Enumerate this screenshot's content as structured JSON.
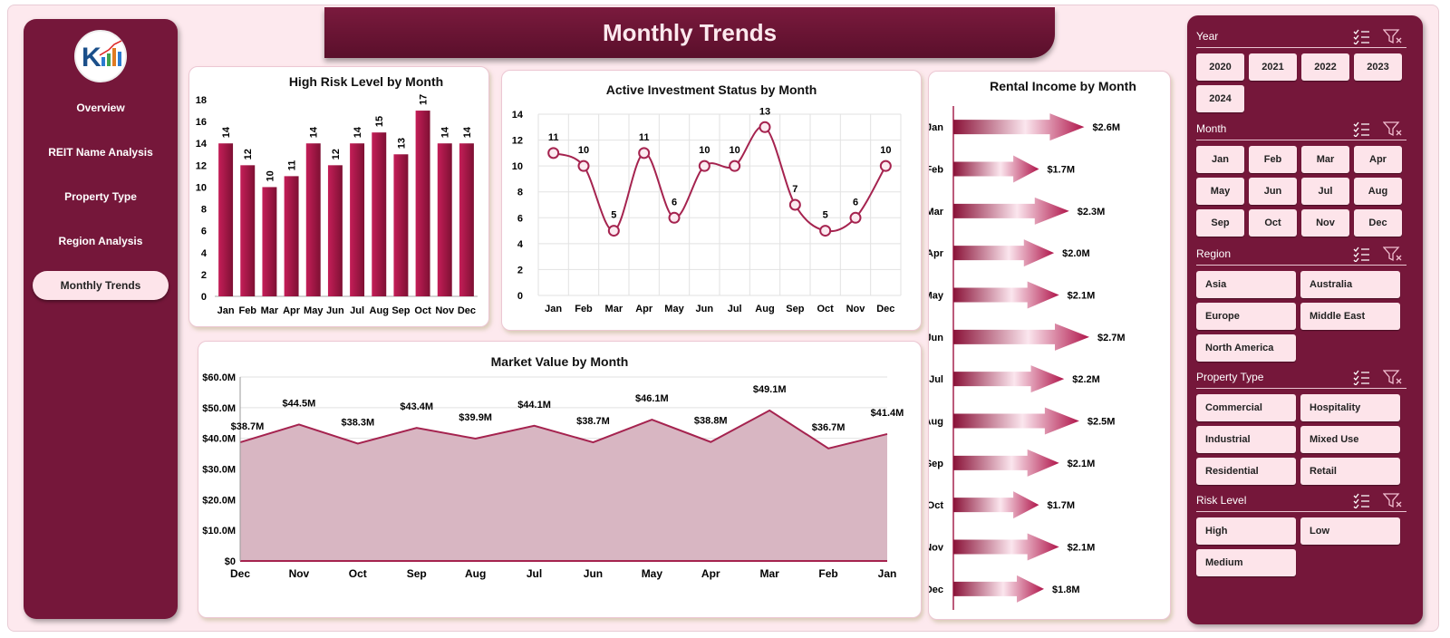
{
  "header": {
    "title": "Monthly Trends"
  },
  "nav": {
    "items": [
      "Overview",
      "REIT Name Analysis",
      "Property Type",
      "Region Analysis",
      "Monthly Trends"
    ],
    "active_index": 4
  },
  "colors": {
    "accent": "#75173a",
    "bar": "#a9174a",
    "area_fill": "#d8b6c2",
    "tile": "#fde4ea",
    "page": "#fde9ee"
  },
  "icons": {
    "multi_select": "multi-select-icon",
    "clear_filter": "clear-filter-icon"
  },
  "slicers": [
    {
      "title": "Year",
      "items": [
        "2020",
        "2021",
        "2022",
        "2023",
        "2024"
      ]
    },
    {
      "title": "Month",
      "items": [
        "Jan",
        "Feb",
        "Mar",
        "Apr",
        "May",
        "Jun",
        "Jul",
        "Aug",
        "Sep",
        "Oct",
        "Nov",
        "Dec"
      ]
    },
    {
      "title": "Region",
      "items": [
        "Asia",
        "Australia",
        "Europe",
        "Middle East",
        "North America"
      ]
    },
    {
      "title": "Property Type",
      "items": [
        "Commercial",
        "Hospitality",
        "Industrial",
        "Mixed Use",
        "Residential",
        "Retail"
      ]
    },
    {
      "title": "Risk Level",
      "items": [
        "High",
        "Low",
        "Medium"
      ]
    }
  ],
  "chart_data": [
    {
      "type": "bar",
      "title": "High Risk Level by Month",
      "categories": [
        "Jan",
        "Feb",
        "Mar",
        "Apr",
        "May",
        "Jun",
        "Jul",
        "Aug",
        "Sep",
        "Oct",
        "Nov",
        "Dec"
      ],
      "values": [
        14,
        12,
        10,
        11,
        14,
        12,
        14,
        15,
        13,
        17,
        14,
        14
      ],
      "ylim": [
        0,
        18
      ],
      "yticks": [
        "0",
        "2",
        "4",
        "6",
        "8",
        "10",
        "12",
        "14",
        "16",
        "18"
      ],
      "labels": [
        "14",
        "12",
        "10",
        "11",
        "14",
        "12",
        "14",
        "15",
        "13",
        "17",
        "14",
        "14"
      ]
    },
    {
      "type": "line",
      "title": "Active Investment Status by Month",
      "categories": [
        "Jan",
        "Feb",
        "Mar",
        "Apr",
        "May",
        "Jun",
        "Jul",
        "Aug",
        "Sep",
        "Oct",
        "Nov",
        "Dec"
      ],
      "values": [
        11,
        10,
        5,
        11,
        6,
        10,
        10,
        13,
        7,
        5,
        6,
        10
      ],
      "ylim": [
        0,
        14
      ],
      "yticks": [
        "0",
        "2",
        "4",
        "6",
        "8",
        "10",
        "12",
        "14"
      ],
      "labels": [
        "11",
        "10",
        "5",
        "11",
        "6",
        "10",
        "10",
        "13",
        "7",
        "5",
        "6",
        "10"
      ],
      "grid": true
    },
    {
      "type": "bar",
      "orientation": "horizontal",
      "title": "Rental Income by Month",
      "categories": [
        "Jan",
        "Feb",
        "Mar",
        "Apr",
        "May",
        "Jun",
        "Jul",
        "Aug",
        "Sep",
        "Oct",
        "Nov",
        "Dec"
      ],
      "values": [
        2.6,
        1.7,
        2.3,
        2.0,
        2.1,
        2.7,
        2.2,
        2.5,
        2.1,
        1.7,
        2.1,
        1.8
      ],
      "labels": [
        "$2.6M",
        "$1.7M",
        "$2.3M",
        "$2.0M",
        "$2.1M",
        "$2.7M",
        "$2.2M",
        "$2.5M",
        "$2.1M",
        "$1.7M",
        "$2.1M",
        "$1.8M"
      ],
      "unit": "M"
    },
    {
      "type": "area",
      "title": "Market Value by Month",
      "categories": [
        "Dec",
        "Nov",
        "Oct",
        "Sep",
        "Aug",
        "Jul",
        "Jun",
        "May",
        "Apr",
        "Mar",
        "Feb",
        "Jan"
      ],
      "values": [
        38.7,
        44.5,
        38.3,
        43.4,
        39.9,
        44.1,
        38.7,
        46.1,
        38.8,
        49.1,
        36.7,
        41.4
      ],
      "labels": [
        "$38.7M",
        "$44.5M",
        "$38.3M",
        "$43.4M",
        "$39.9M",
        "$44.1M",
        "$38.7M",
        "$46.1M",
        "$38.8M",
        "$49.1M",
        "$36.7M",
        "$41.4M"
      ],
      "ylim": [
        0,
        60
      ],
      "yticks": [
        "$0",
        "$10.0M",
        "$20.0M",
        "$30.0M",
        "$40.0M",
        "$50.0M",
        "$60.0M"
      ],
      "grid": true
    }
  ]
}
